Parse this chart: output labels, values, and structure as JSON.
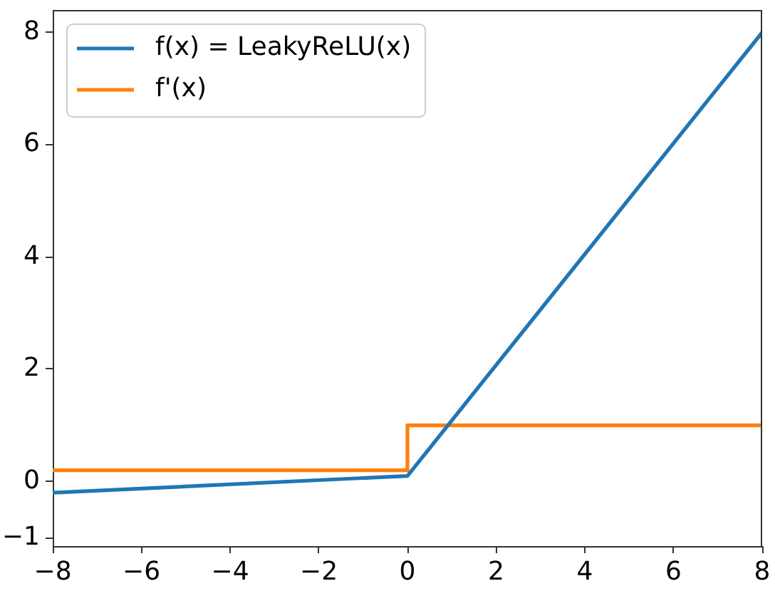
{
  "chart_data": {
    "type": "line",
    "series": [
      {
        "name": "f(x) = LeakyReLU(x)",
        "color": "#1f77b4",
        "x": [
          -8,
          0,
          8
        ],
        "values": [
          -0.2,
          0.1,
          8
        ]
      },
      {
        "name": "f'(x)",
        "color": "#ff7f0e",
        "x": [
          -8,
          0,
          0,
          8
        ],
        "values": [
          0.2,
          0.2,
          1,
          1
        ]
      }
    ],
    "xlim": [
      -8,
      8
    ],
    "xticks": [
      {
        "value": -8,
        "label": "−8"
      },
      {
        "value": -6,
        "label": "−6"
      },
      {
        "value": -4,
        "label": "−4"
      },
      {
        "value": -2,
        "label": "−2"
      },
      0,
      2,
      4,
      6,
      8
    ],
    "ylim": [
      -1.15,
      8.4
    ],
    "yticks": [
      {
        "value": -1,
        "label": "−1"
      },
      0,
      2,
      4,
      6,
      8
    ],
    "grid": false,
    "legend": "top left",
    "marker": "none",
    "line_style": "solid"
  }
}
